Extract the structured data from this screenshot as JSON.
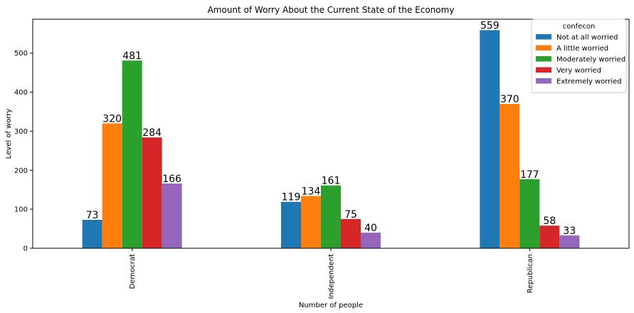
{
  "chart_data": {
    "type": "bar",
    "title": "Amount of Worry About the Current State of the Economy",
    "xlabel": "Number of people",
    "ylabel": "Level of worry",
    "categories": [
      "Democrat",
      "Independent",
      "Republican"
    ],
    "ylim": [
      0,
      587
    ],
    "yticks": [
      0,
      100,
      200,
      300,
      400,
      500
    ],
    "legend": {
      "title": "confecon",
      "placement": "top-right"
    },
    "series": [
      {
        "name": "Not at all worried",
        "color": "#1f77b4",
        "values": [
          73,
          119,
          559
        ]
      },
      {
        "name": "A little worried",
        "color": "#ff7f0e",
        "values": [
          320,
          134,
          370
        ]
      },
      {
        "name": "Moderately worried",
        "color": "#2ca02c",
        "values": [
          481,
          161,
          177
        ]
      },
      {
        "name": "Very worried",
        "color": "#d62728",
        "values": [
          284,
          75,
          58
        ]
      },
      {
        "name": "Extremely worried",
        "color": "#9467bd",
        "values": [
          166,
          40,
          33
        ]
      }
    ],
    "grid": false
  }
}
